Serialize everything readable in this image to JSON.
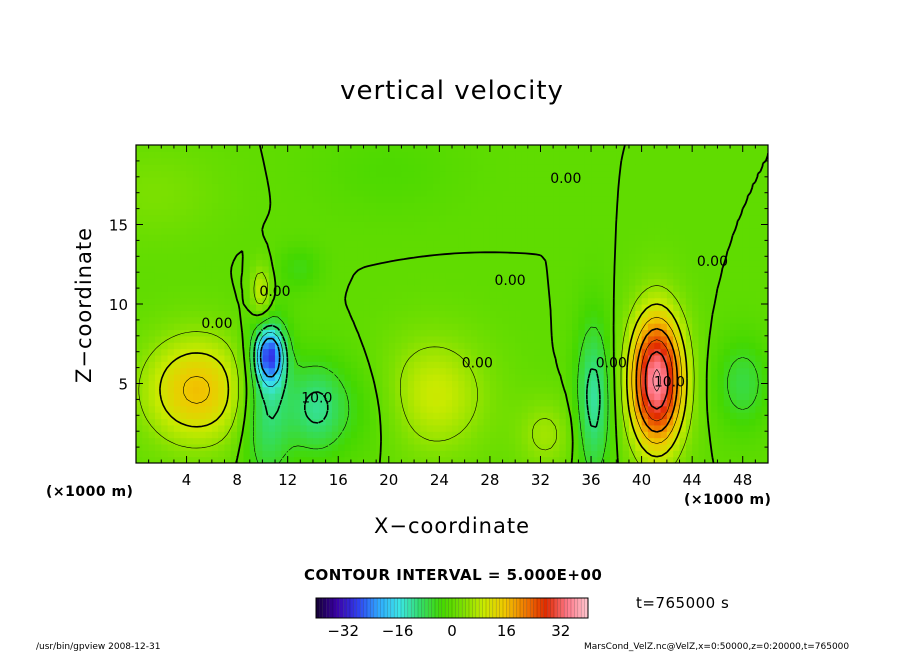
{
  "chart_data": {
    "type": "heatmap",
    "title": "vertical velocity",
    "xlabel": "X−coordinate",
    "ylabel": "Z−coordinate",
    "x_unit_left": "(×1000 m)",
    "x_unit_right": "(×1000 m)",
    "xlim": [
      0,
      50
    ],
    "ylim": [
      0,
      20
    ],
    "x_ticks": [
      4,
      8,
      12,
      16,
      20,
      24,
      28,
      32,
      36,
      40,
      44,
      48
    ],
    "y_ticks": [
      5,
      10,
      15
    ],
    "contour_interval": "CONTOUR INTERVAL = 5.000E+00",
    "contour_labels": [
      {
        "text": "0.00",
        "x": 6.4,
        "y": 8.5
      },
      {
        "text": "0.00",
        "x": 11.0,
        "y": 10.5
      },
      {
        "text": "10.0",
        "x": 14.3,
        "y": 3.8
      },
      {
        "text": "0.00",
        "x": 27.0,
        "y": 6.0
      },
      {
        "text": "0.00",
        "x": 29.6,
        "y": 11.2
      },
      {
        "text": "0.00",
        "x": 34.0,
        "y": 17.6
      },
      {
        "text": "0.00",
        "x": 37.6,
        "y": 6.0
      },
      {
        "text": "10.0",
        "x": 42.2,
        "y": 4.8
      },
      {
        "text": "0.00",
        "x": 45.6,
        "y": 12.4
      }
    ],
    "blobs": [
      {
        "x": 4.8,
        "y": 4.6,
        "sx": 3.0,
        "sy": 2.4,
        "a": 16
      },
      {
        "x": 23.5,
        "y": 4.3,
        "sx": 3.0,
        "sy": 2.6,
        "a": 10
      },
      {
        "x": 32.4,
        "y": 1.8,
        "sx": 1.6,
        "sy": 1.6,
        "a": 6
      },
      {
        "x": 41.2,
        "y": 5.2,
        "sx": 1.5,
        "sy": 3.0,
        "a": 36
      },
      {
        "x": 9.9,
        "y": 10.8,
        "sx": 0.6,
        "sy": 1.2,
        "a": 10
      },
      {
        "x": 1.5,
        "y": 17.0,
        "sx": 3.5,
        "sy": 2.0,
        "a": 3
      },
      {
        "x": 10.6,
        "y": 6.8,
        "sx": 0.8,
        "sy": 1.2,
        "a": -22
      },
      {
        "x": 10.3,
        "y": 4.0,
        "sx": 1.4,
        "sy": 3.5,
        "a": -12
      },
      {
        "x": 14.2,
        "y": 3.5,
        "sx": 1.5,
        "sy": 2.0,
        "a": -9
      },
      {
        "x": 17.5,
        "y": 3.5,
        "sx": 3.0,
        "sy": 2.2,
        "a": -4
      },
      {
        "x": 36.2,
        "y": 4.0,
        "sx": 1.0,
        "sy": 3.5,
        "a": -12
      },
      {
        "x": 48.0,
        "y": 5.0,
        "sx": 1.5,
        "sy": 2.0,
        "a": -7
      },
      {
        "x": 13.0,
        "y": 12.3,
        "sx": 1.2,
        "sy": 1.0,
        "a": -4
      },
      {
        "x": 20.0,
        "y": 18.5,
        "sx": 4.0,
        "sy": 2.0,
        "a": -2
      }
    ],
    "colorbar": {
      "ticks": [
        -32,
        -16,
        0,
        16,
        32
      ],
      "range": [
        -40,
        40
      ],
      "colors": [
        "#140033",
        "#3a00a8",
        "#2f3ef0",
        "#2fa9ff",
        "#3be6e6",
        "#33dd66",
        "#44d800",
        "#7be000",
        "#c8ea00",
        "#f0c800",
        "#f07a00",
        "#e02a00",
        "#ff7788",
        "#ffc8d0"
      ]
    },
    "time_label": "t=765000  s"
  },
  "footer": {
    "left": "/usr/bin/gpview   2008-12-31",
    "right": "MarsCond_VelZ.nc@VelZ,x=0:50000,z=0:20000,t=765000"
  }
}
